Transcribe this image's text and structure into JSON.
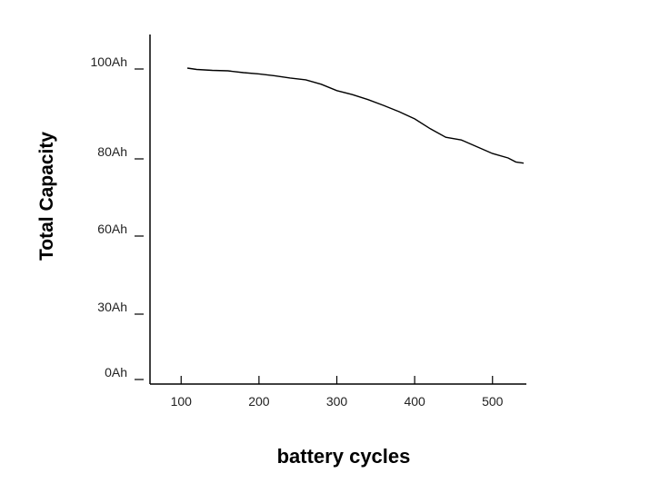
{
  "chart_data": {
    "type": "line",
    "title": "",
    "xlabel": "battery cycles",
    "ylabel": "Total Capacity",
    "x_ticks": [
      100,
      200,
      300,
      400,
      500
    ],
    "y_ticks": [
      "0Ah",
      "30Ah",
      "60Ah",
      "80Ah",
      "100Ah"
    ],
    "xlim": [
      60,
      540
    ],
    "grid": false,
    "series": [
      {
        "x": [
          108,
          120,
          140,
          160,
          180,
          200,
          220,
          240,
          260,
          280,
          300,
          320,
          340,
          360,
          380,
          400,
          420,
          440,
          460,
          480,
          500,
          520,
          530,
          540
        ],
        "y": [
          100.2,
          99.9,
          99.7,
          99.6,
          99.2,
          98.9,
          98.5,
          98.0,
          97.6,
          96.6,
          95.2,
          94.3,
          93.2,
          91.9,
          90.5,
          88.9,
          86.7,
          84.8,
          84.2,
          82.7,
          81.2,
          80.2,
          79.2,
          78.9
        ]
      }
    ]
  }
}
